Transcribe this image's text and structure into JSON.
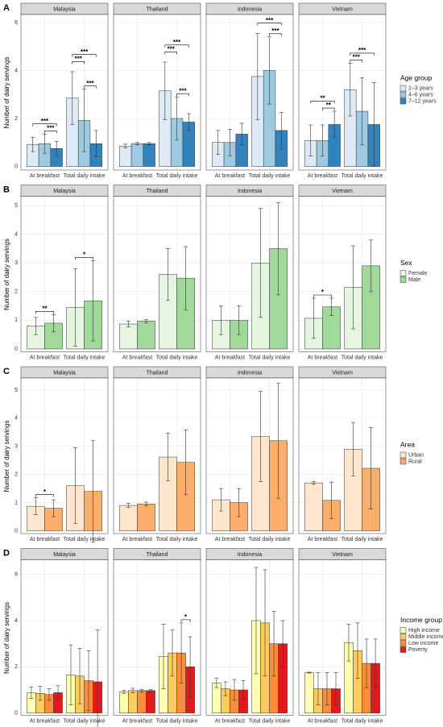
{
  "chart_data": [
    {
      "type": "bar",
      "panel_label": "A",
      "ylabel": "Number of dairy servings",
      "legend_title": "Age group",
      "facets": [
        "Malaysia",
        "Thailand",
        "Indonesia",
        "Vietnam"
      ],
      "categories": [
        "At breakfast",
        "Total daily intake"
      ],
      "ylim": [
        -0.15,
        6.3
      ],
      "yticks": [
        0,
        2,
        4,
        6
      ],
      "grid": true,
      "series": [
        {
          "name": "2–3 years",
          "color": "#deebf7",
          "values": [
            [
              0.92,
              2.85
            ],
            [
              0.85,
              3.15
            ],
            [
              1.0,
              3.75
            ],
            [
              1.08,
              3.2
            ]
          ],
          "errors": [
            [
              0.3,
              1.1
            ],
            [
              0.08,
              1.2
            ],
            [
              0.5,
              1.8
            ],
            [
              0.65,
              1.1
            ]
          ]
        },
        {
          "name": "4–6 years",
          "color": "#9ecae1",
          "values": [
            [
              0.95,
              1.92
            ],
            [
              0.95,
              2.0
            ],
            [
              1.0,
              4.0
            ],
            [
              1.08,
              2.3
            ]
          ],
          "errors": [
            [
              0.4,
              1.3
            ],
            [
              0.05,
              0.9
            ],
            [
              0.55,
              1.4
            ],
            [
              0.65,
              1.4
            ]
          ]
        },
        {
          "name": "7–12 years",
          "color": "#3182bd",
          "values": [
            [
              0.75,
              0.95
            ],
            [
              0.95,
              1.85
            ],
            [
              1.35,
              1.5
            ],
            [
              1.75,
              1.75
            ]
          ],
          "errors": [
            [
              0.3,
              0.55
            ],
            [
              0.05,
              0.35
            ],
            [
              0.45,
              0.75
            ],
            [
              0.55,
              1.75
            ]
          ]
        }
      ],
      "significance": [
        {
          "facet": 0,
          "category": 0,
          "pair": [
            1,
            2
          ],
          "label": "***"
        },
        {
          "facet": 0,
          "category": 0,
          "pair": [
            0,
            2
          ],
          "label": "***"
        },
        {
          "facet": 0,
          "category": 1,
          "pair": [
            1,
            2
          ],
          "label": "***"
        },
        {
          "facet": 0,
          "category": 1,
          "pair": [
            0,
            1
          ],
          "label": "***"
        },
        {
          "facet": 0,
          "category": 1,
          "pair": [
            0,
            2
          ],
          "label": "***"
        },
        {
          "facet": 1,
          "category": 1,
          "pair": [
            1,
            2
          ],
          "label": "***"
        },
        {
          "facet": 1,
          "category": 1,
          "pair": [
            0,
            1
          ],
          "label": "***"
        },
        {
          "facet": 1,
          "category": 1,
          "pair": [
            0,
            2
          ],
          "label": "***"
        },
        {
          "facet": 2,
          "category": 1,
          "pair": [
            1,
            2
          ],
          "label": "***"
        },
        {
          "facet": 2,
          "category": 1,
          "pair": [
            0,
            2
          ],
          "label": "***"
        },
        {
          "facet": 3,
          "category": 0,
          "pair": [
            1,
            2
          ],
          "label": "**"
        },
        {
          "facet": 3,
          "category": 0,
          "pair": [
            0,
            2
          ],
          "label": "**"
        },
        {
          "facet": 3,
          "category": 1,
          "pair": [
            0,
            1
          ],
          "label": "***"
        },
        {
          "facet": 3,
          "category": 1,
          "pair": [
            0,
            2
          ],
          "label": "***"
        }
      ]
    },
    {
      "type": "bar",
      "panel_label": "B",
      "ylabel": "Number of dairy servings",
      "legend_title": "Sex",
      "facets": [
        "Malaysia",
        "Thailand",
        "Indonesia",
        "Vietnam"
      ],
      "categories": [
        "At breakfast",
        "Total daily intake"
      ],
      "ylim": [
        -0.1,
        5.3
      ],
      "yticks": [
        0,
        1,
        2,
        3,
        4,
        5
      ],
      "grid": true,
      "series": [
        {
          "name": "Female",
          "color": "#e5f5e0",
          "values": [
            [
              0.8,
              1.45
            ],
            [
              0.87,
              2.6
            ],
            [
              1.0,
              3.0
            ],
            [
              1.07,
              2.15
            ]
          ],
          "errors": [
            [
              0.3,
              1.35
            ],
            [
              0.1,
              0.9
            ],
            [
              0.5,
              1.9
            ],
            [
              0.7,
              1.45
            ]
          ]
        },
        {
          "name": "Male",
          "color": "#a1d99b",
          "values": [
            [
              0.9,
              1.68
            ],
            [
              0.97,
              2.47
            ],
            [
              1.0,
              3.5
            ],
            [
              1.47,
              2.9
            ]
          ],
          "errors": [
            [
              0.3,
              1.4
            ],
            [
              0.05,
              1.1
            ],
            [
              0.5,
              1.6
            ],
            [
              0.3,
              0.9
            ]
          ]
        }
      ],
      "significance": [
        {
          "facet": 0,
          "category": 0,
          "pair": [
            0,
            1
          ],
          "label": "**"
        },
        {
          "facet": 0,
          "category": 1,
          "pair": [
            0,
            1
          ],
          "label": "*"
        },
        {
          "facet": 3,
          "category": 0,
          "pair": [
            0,
            1
          ],
          "label": "*"
        }
      ]
    },
    {
      "type": "bar",
      "panel_label": "C",
      "ylabel": "Number of dairy servings",
      "legend_title": "Area",
      "facets": [
        "Malaysia",
        "Thailand",
        "Indonesia",
        "Vietnam"
      ],
      "categories": [
        "At breakfast",
        "Total daily intake"
      ],
      "ylim": [
        -0.1,
        5.4
      ],
      "yticks": [
        0,
        1,
        2,
        3,
        4,
        5
      ],
      "grid": true,
      "series": [
        {
          "name": "Urban",
          "color": "#fee6ce",
          "values": [
            [
              0.87,
              1.6
            ],
            [
              0.9,
              2.62
            ],
            [
              1.1,
              3.35
            ],
            [
              1.7,
              2.9
            ]
          ],
          "errors": [
            [
              0.3,
              1.35
            ],
            [
              0.07,
              0.85
            ],
            [
              0.4,
              1.6
            ],
            [
              0.05,
              0.95
            ]
          ]
        },
        {
          "name": "Rural",
          "color": "#fdae6b",
          "values": [
            [
              0.8,
              1.4
            ],
            [
              0.95,
              2.43
            ],
            [
              1.0,
              3.2
            ],
            [
              1.08,
              2.22
            ]
          ],
          "errors": [
            [
              0.3,
              1.8
            ],
            [
              0.07,
              1.15
            ],
            [
              0.5,
              2.05
            ],
            [
              0.65,
              1.45
            ]
          ]
        }
      ],
      "significance": [
        {
          "facet": 0,
          "category": 0,
          "pair": [
            0,
            1
          ],
          "label": "*"
        }
      ]
    },
    {
      "type": "bar",
      "panel_label": "D",
      "ylabel": "Number of dairy servings",
      "legend_title": "Income group",
      "facets": [
        "Malaysia",
        "Thailand",
        "Indonesia",
        "Vietnam"
      ],
      "categories": [
        "At breakfast",
        "Total daily intake"
      ],
      "ylim": [
        -0.1,
        6.6
      ],
      "yticks": [
        0,
        2,
        4,
        6
      ],
      "grid": true,
      "series": [
        {
          "name": "High income",
          "color": "#ffffb2",
          "values": [
            [
              0.88,
              1.65
            ],
            [
              0.92,
              2.45
            ],
            [
              1.3,
              4.0
            ],
            [
              1.75,
              3.05
            ]
          ],
          "errors": [
            [
              0.25,
              1.3
            ],
            [
              0.07,
              1.4
            ],
            [
              0.2,
              2.3
            ],
            [
              0.02,
              0.8
            ]
          ]
        },
        {
          "name": "Middle income",
          "color": "#fecc5c",
          "values": [
            [
              0.85,
              1.6
            ],
            [
              0.97,
              2.6
            ],
            [
              1.05,
              3.9
            ],
            [
              1.05,
              2.7
            ]
          ],
          "errors": [
            [
              0.3,
              1.2
            ],
            [
              0.1,
              1.0
            ],
            [
              0.3,
              2.3
            ],
            [
              0.7,
              1.2
            ]
          ]
        },
        {
          "name": "Low income",
          "color": "#fd8d3c",
          "values": [
            [
              0.8,
              1.4
            ],
            [
              0.97,
              2.6
            ],
            [
              1.0,
              3.0
            ],
            [
              1.05,
              2.15
            ]
          ],
          "errors": [
            [
              0.25,
              1.3
            ],
            [
              0.05,
              1.3
            ],
            [
              0.45,
              1.4
            ],
            [
              0.7,
              1.05
            ]
          ]
        },
        {
          "name": "Poverty",
          "color": "#e31a1c",
          "values": [
            [
              0.88,
              1.35
            ],
            [
              0.97,
              2.0
            ],
            [
              1.0,
              3.0
            ],
            [
              1.05,
              2.15
            ]
          ],
          "errors": [
            [
              0.3,
              2.25
            ],
            [
              0.05,
              1.3
            ],
            [
              0.4,
              1.0
            ],
            [
              0.7,
              1.05
            ]
          ]
        }
      ],
      "significance": [
        {
          "facet": 1,
          "category": 1,
          "pair": [
            2,
            3
          ],
          "label": "*"
        }
      ]
    }
  ]
}
